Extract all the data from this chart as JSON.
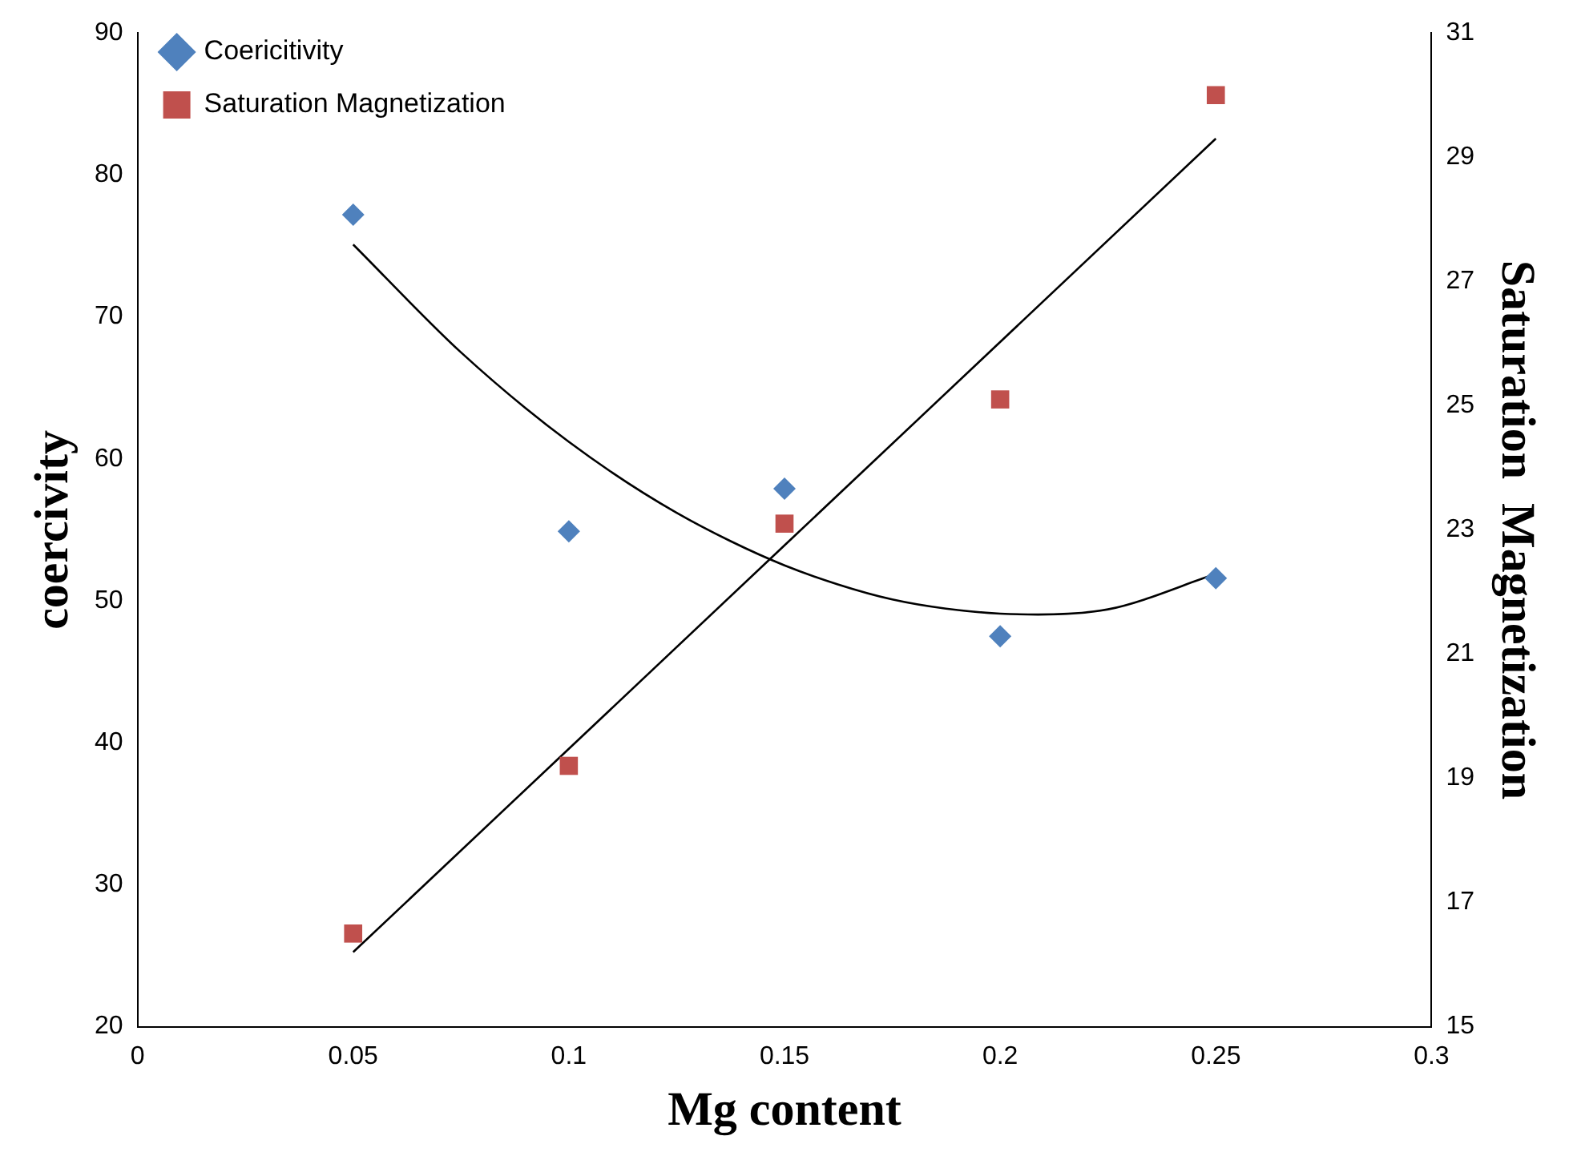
{
  "chart_data": {
    "type": "scatter",
    "xlabel": "Mg content",
    "ylabel": "coercivity",
    "y2label": "Saturation  Magnetization",
    "xlim": [
      0,
      0.3
    ],
    "xticks": [
      0,
      0.05,
      0.1,
      0.15,
      0.2,
      0.25,
      0.3
    ],
    "ylim": [
      20,
      90
    ],
    "yticks": [
      20,
      30,
      40,
      50,
      60,
      70,
      80,
      90
    ],
    "y2lim": [
      15,
      31
    ],
    "y2ticks": [
      15,
      17,
      19,
      21,
      23,
      25,
      27,
      29,
      31
    ],
    "grid": false,
    "legend": "top left",
    "series": [
      {
        "name": "Coericitivity",
        "type": "scatter",
        "marker": "diamond",
        "color": "#4f81bd",
        "x": [
          0.05,
          0.1,
          0.15,
          0.2,
          0.25
        ],
        "values": [
          77.2,
          54.9,
          57.9,
          47.5,
          51.6
        ]
      },
      {
        "name": "Saturation Magnetization",
        "type": "scatter",
        "marker": "square",
        "color": "#c0504d",
        "axis": "y2",
        "x": [
          0.05,
          0.1,
          0.15,
          0.2,
          0.25
        ],
        "values": [
          16.5,
          19.2,
          23.1,
          25.1,
          30.0
        ]
      },
      {
        "type": "line",
        "marker": "none",
        "color": "#000000",
        "x": [
          0.05,
          0.075,
          0.1,
          0.125,
          0.15,
          0.175,
          0.2,
          0.225,
          0.25
        ],
        "values": [
          75.1,
          67.5,
          61.2,
          56.2,
          52.5,
          50.1,
          49.1,
          49.4,
          51.9
        ]
      },
      {
        "type": "line",
        "marker": "none",
        "color": "#000000",
        "axis": "y2",
        "x": [
          0.05,
          0.25
        ],
        "values": [
          16.2,
          29.3
        ]
      }
    ]
  }
}
